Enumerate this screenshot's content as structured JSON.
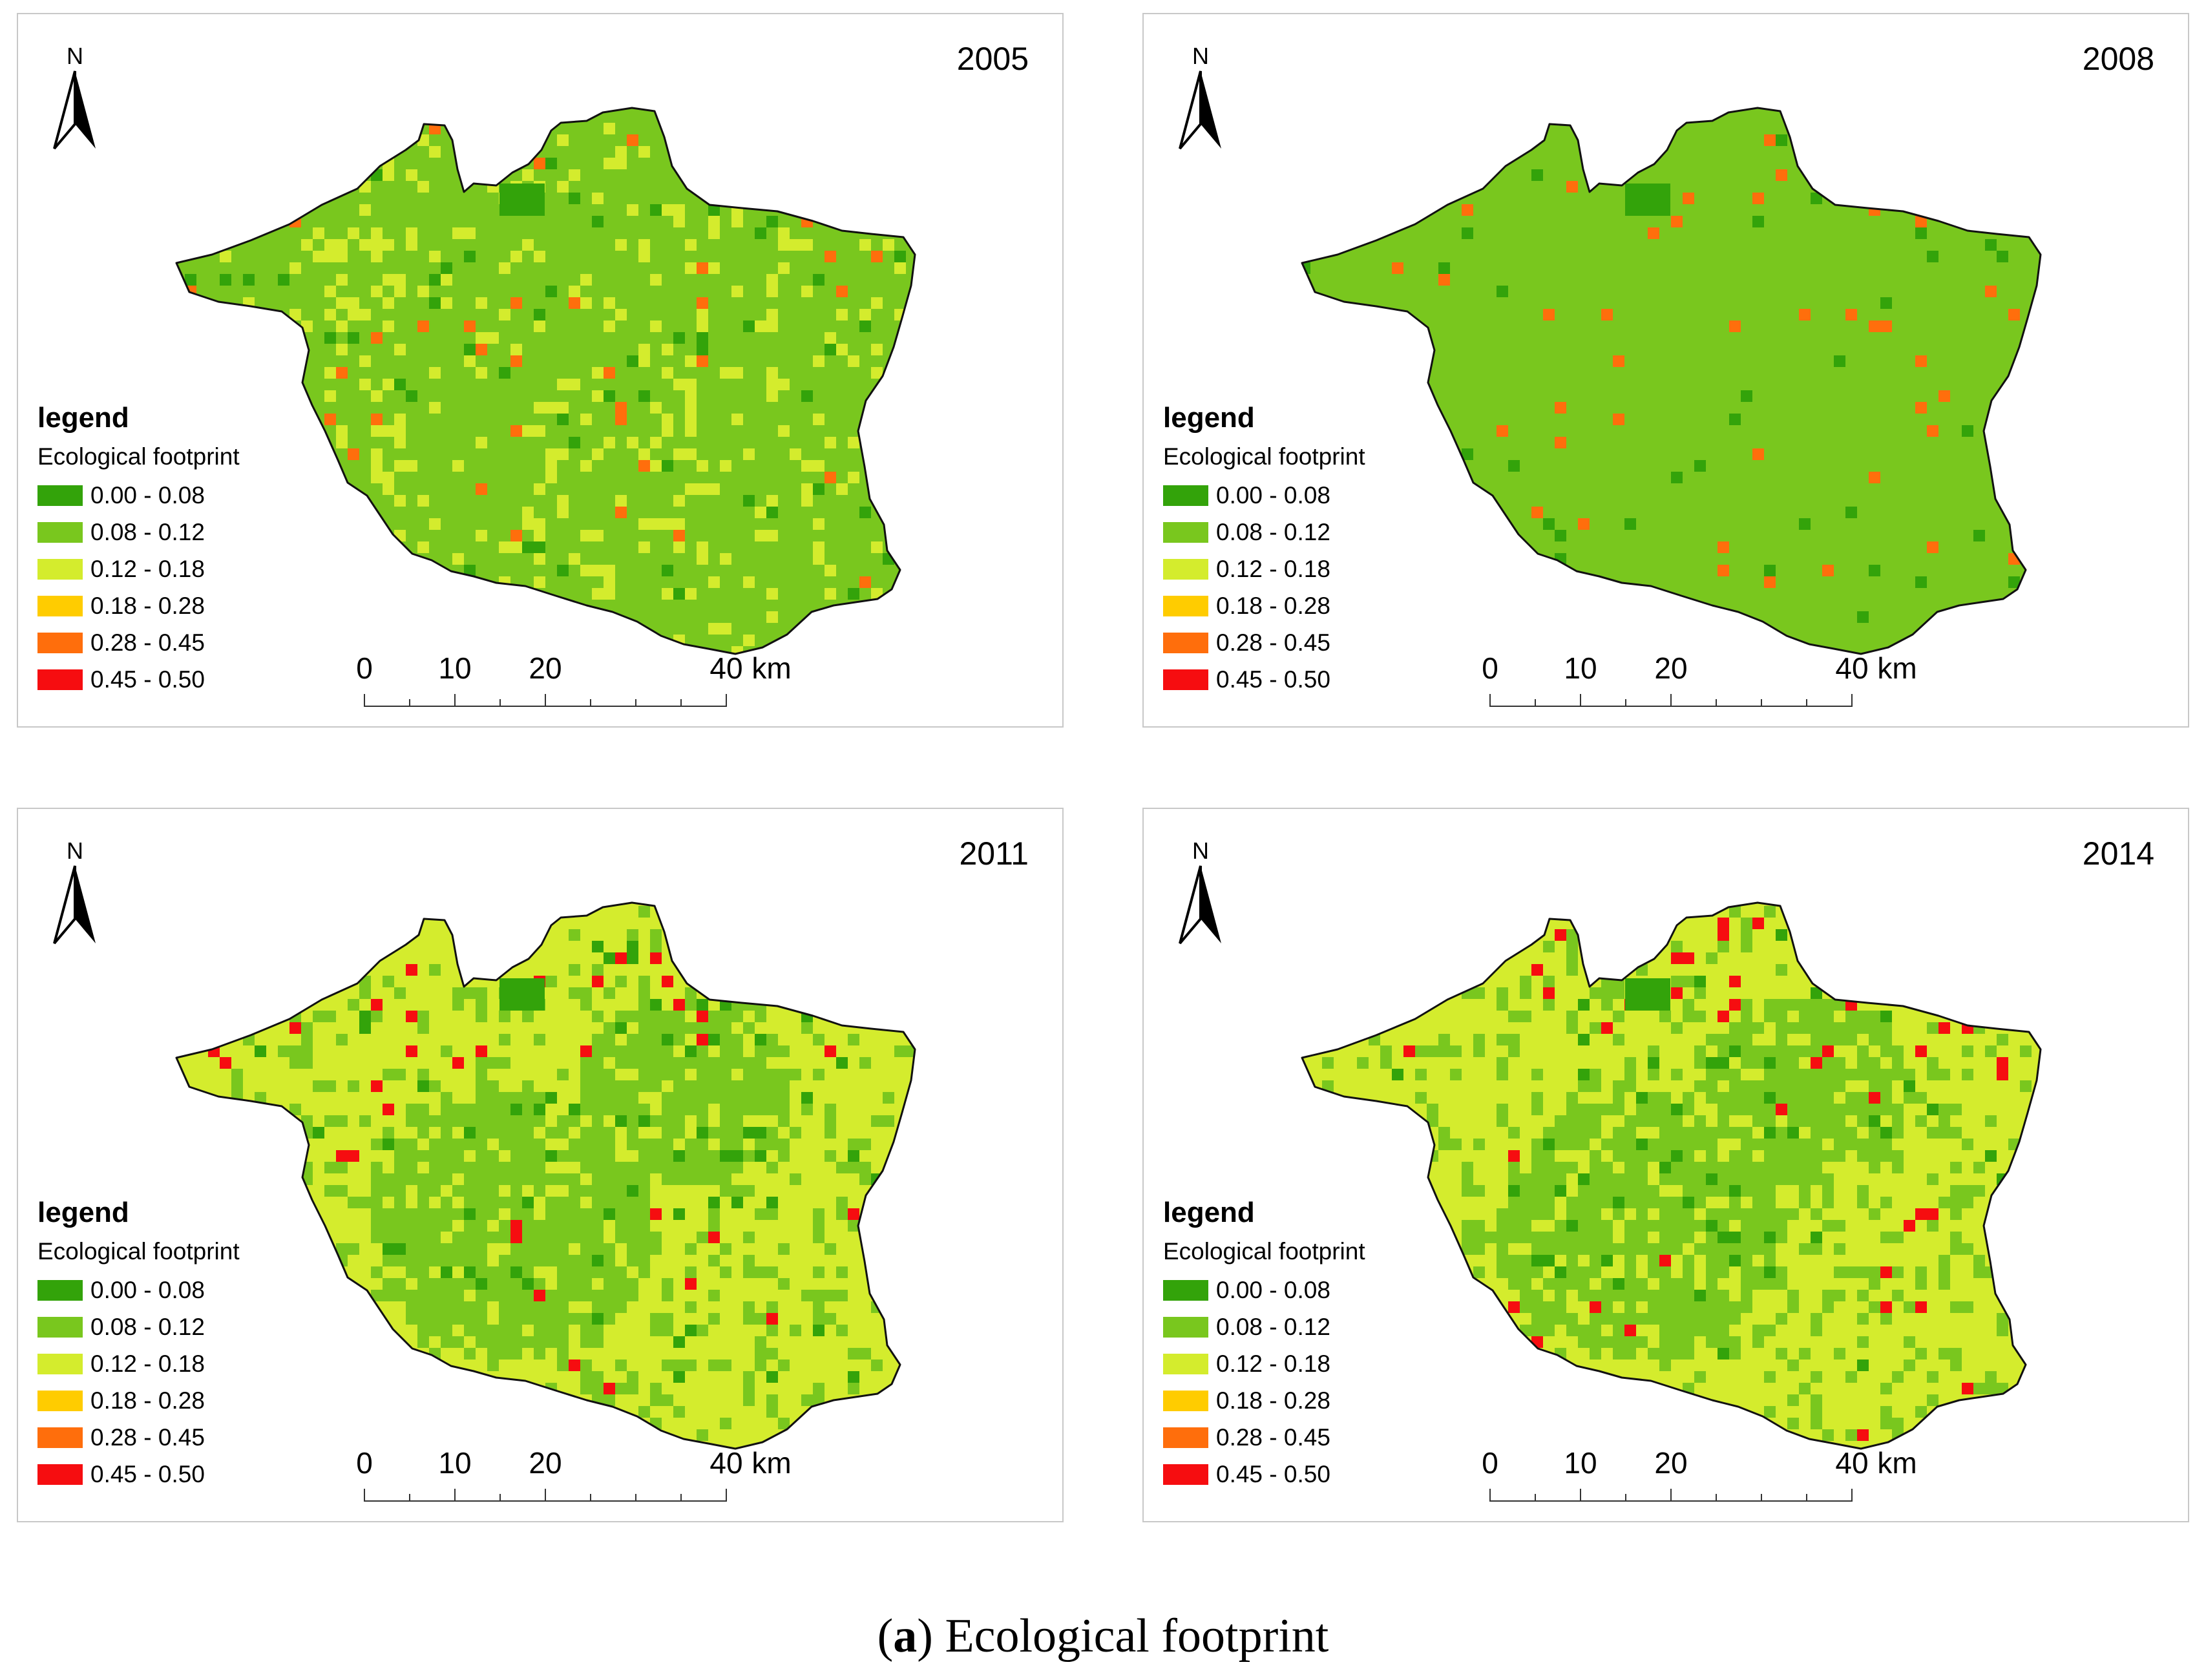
{
  "figure": {
    "caption_label": "a",
    "caption_text": "Ecological footprint"
  },
  "legend": {
    "title": "legend",
    "subtitle": "Ecological footprint",
    "classes": [
      {
        "label": "0.00 - 0.08",
        "color": "#33a30a"
      },
      {
        "label": "0.08 - 0.12",
        "color": "#79c71e"
      },
      {
        "label": "0.12 - 0.18",
        "color": "#d4ec2d"
      },
      {
        "label": "0.18 - 0.28",
        "color": "#ffcc00"
      },
      {
        "label": "0.28 - 0.45",
        "color": "#ff6e0c"
      },
      {
        "label": "0.45 - 0.50",
        "color": "#f60d10"
      }
    ]
  },
  "north_arrow": {
    "label": "N",
    "icon": "north-arrow-icon"
  },
  "scale_bar": {
    "labels": [
      "0",
      "10",
      "20",
      "40"
    ],
    "unit": "km"
  },
  "panels": [
    {
      "year": "2005",
      "dominant_class": "0.08 - 0.12",
      "secondary_class": "0.12 - 0.18",
      "hotspot_class": "0.28 - 0.45"
    },
    {
      "year": "2008",
      "dominant_class": "0.08 - 0.12",
      "secondary_class": "0.00 - 0.08",
      "hotspot_class": "0.28 - 0.45"
    },
    {
      "year": "2011",
      "dominant_class": "0.12 - 0.18",
      "secondary_class": "0.08 - 0.12",
      "hotspot_class": "0.45 - 0.50"
    },
    {
      "year": "2014",
      "dominant_class": "0.12 - 0.18",
      "secondary_class": "0.08 - 0.12",
      "hotspot_class": "0.45 - 0.50"
    }
  ]
}
